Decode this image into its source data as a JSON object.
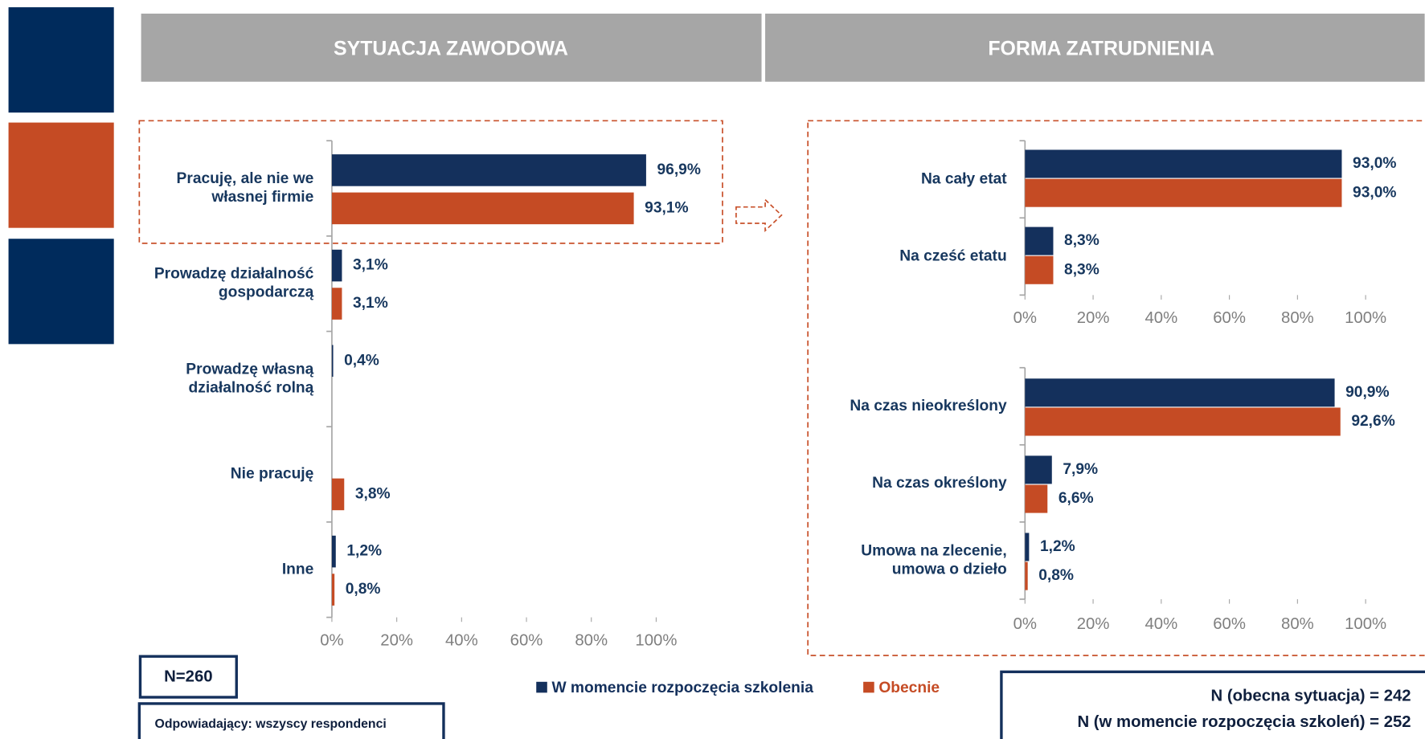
{
  "headers": [
    "SYTUACJA ZAWODOWA",
    "FORMA ZATRUDNIENIA"
  ],
  "notes": {
    "n": "N=260",
    "respondents": "Odpowiadający: wszyscy respondenci",
    "n_right": [
      "N (obecna sytuacja) = 242",
      "N (w momencie rozpoczęcia szkoleń) = 252"
    ]
  },
  "chart_data": [
    {
      "type": "bar",
      "orientation": "horizontal",
      "categories": [
        "Pracuję, ale nie we\nwłasnej firmie",
        "Prowadzę działalność\ngospodarczą",
        "Prowadzę własną\ndziałalność rolną",
        "Nie pracuję",
        "Inne"
      ],
      "series": [
        {
          "name": "W momencie rozpoczęcia szkolenia",
          "color": "#14305c",
          "values": [
            96.9,
            3.1,
            0.4,
            null,
            1.2
          ],
          "value_labels": [
            "96,9%",
            "3,1%",
            "0,4%",
            null,
            "1,2%"
          ]
        },
        {
          "name": "Obecnie",
          "color": "#c54b24",
          "values": [
            93.1,
            3.1,
            null,
            3.8,
            0.8
          ],
          "value_labels": [
            "93,1%",
            "3,1%",
            null,
            "3,8%",
            "0,8%"
          ]
        }
      ],
      "xlim": [
        0,
        100
      ],
      "xticks": [
        {
          "value": 0,
          "label": "0%"
        },
        {
          "value": 20,
          "label": "20%"
        },
        {
          "value": 40,
          "label": "40%"
        },
        {
          "value": 60,
          "label": "60%"
        },
        {
          "value": 80,
          "label": "80%"
        },
        {
          "value": 100,
          "label": "100%"
        }
      ]
    },
    {
      "type": "bar",
      "orientation": "horizontal",
      "categories": [
        "Na cały etat",
        "Na cześć etatu"
      ],
      "series": [
        {
          "color": "#14305c",
          "values": [
            93.0,
            8.3
          ],
          "value_labels": [
            "93,0%",
            "8,3%"
          ]
        },
        {
          "color": "#c54b24",
          "values": [
            93.0,
            8.3
          ],
          "value_labels": [
            "93,0%",
            "8,3%"
          ]
        }
      ],
      "xlim": [
        0,
        100
      ],
      "xticks": [
        {
          "value": 0,
          "label": "0%"
        },
        {
          "value": 20,
          "label": "20%"
        },
        {
          "value": 40,
          "label": "40%"
        },
        {
          "value": 60,
          "label": "60%"
        },
        {
          "value": 80,
          "label": "80%"
        },
        {
          "value": 100,
          "label": "100%"
        }
      ]
    },
    {
      "type": "bar",
      "orientation": "horizontal",
      "categories": [
        "Na czas nieokreślony",
        "Na czas określony",
        "Umowa na zlecenie,\numowa o dzieło"
      ],
      "series": [
        {
          "color": "#14305c",
          "values": [
            90.9,
            7.9,
            1.2
          ],
          "value_labels": [
            "90,9%",
            "7,9%",
            "1,2%"
          ]
        },
        {
          "color": "#c54b24",
          "values": [
            92.6,
            6.6,
            0.8
          ],
          "value_labels": [
            "92,6%",
            "6,6%",
            "0,8%"
          ]
        }
      ],
      "xlim": [
        0,
        100
      ],
      "xticks": [
        {
          "value": 0,
          "label": "0%"
        },
        {
          "value": 20,
          "label": "20%"
        },
        {
          "value": 40,
          "label": "40%"
        },
        {
          "value": 60,
          "label": "60%"
        },
        {
          "value": 80,
          "label": "80%"
        },
        {
          "value": 100,
          "label": "100%"
        }
      ]
    }
  ]
}
